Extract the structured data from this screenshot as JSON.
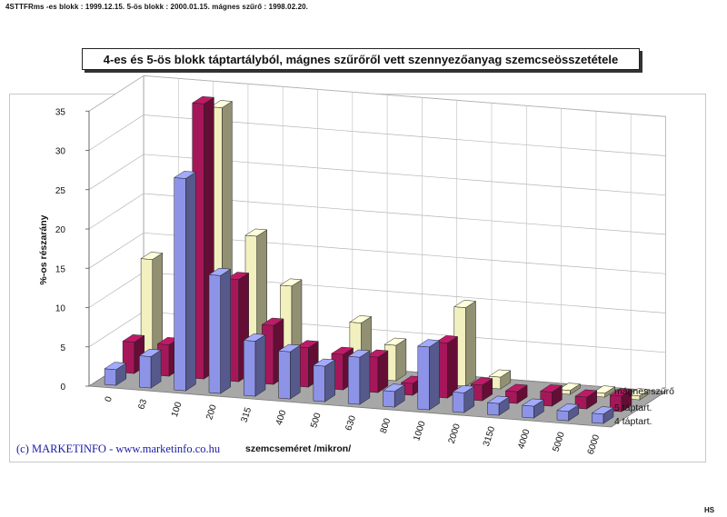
{
  "header": {
    "text": "4STTFRms  -es blokk : 1999.12.15.  5-ös blokk : 2000.01.15.  mágnes szűrő : 1998.02.20."
  },
  "footer": {
    "credit": "(c) MARKETINFO - www.marketinfo.co.hu",
    "corner": "HS"
  },
  "colors": {
    "series_4": "#8d94e8",
    "series_5": "#a6175a",
    "series_m": "#f3f0bf"
  },
  "chart_data": {
    "type": "bar",
    "title": "4-es és 5-ös blokk táptartályból, mágnes szűrőről vett szennyezőanyag szemcseösszetétele",
    "xlabel": "szemcseméret  /mikron/",
    "ylabel": "%-os részarány",
    "ylim": [
      0,
      35
    ],
    "yticks": [
      0,
      5,
      10,
      15,
      20,
      25,
      30,
      35
    ],
    "grid": true,
    "categories": [
      "0",
      "63",
      "100",
      "200",
      "315",
      "400",
      "500",
      "630",
      "800",
      "1000",
      "2000",
      "3150",
      "4000",
      "5000",
      "6000"
    ],
    "series": [
      {
        "name": "4 táptart.",
        "values": [
          2,
          4,
          27,
          15,
          7,
          6,
          4.5,
          6,
          2,
          8,
          2.5,
          1.5,
          1.5,
          1.2,
          1.2
        ]
      },
      {
        "name": "5 táptart.",
        "values": [
          4,
          4,
          35,
          13,
          7.5,
          5,
          4.5,
          4.5,
          1.5,
          7,
          2,
          1.5,
          1.8,
          1.5,
          2
        ]
      },
      {
        "name": "mágnes szűrő",
        "values": [
          13,
          10,
          33,
          17,
          11,
          1,
          7,
          4.5,
          0.5,
          10,
          1.5,
          0,
          0.5,
          0.5,
          0.5
        ]
      }
    ],
    "legend_position": "right"
  }
}
